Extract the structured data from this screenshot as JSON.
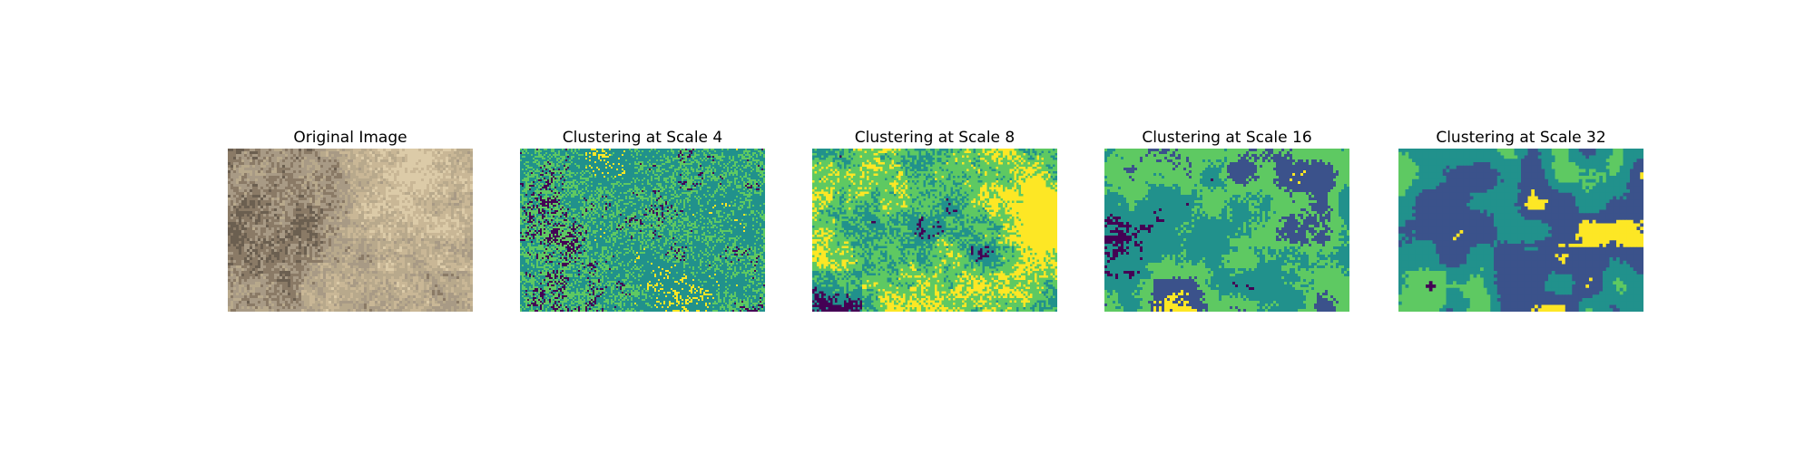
{
  "figure": {
    "panels": [
      {
        "title": "Original Image",
        "kind": "photo"
      },
      {
        "title": "Clustering at Scale 4",
        "kind": "cluster",
        "scale": 4
      },
      {
        "title": "Clustering at Scale 8",
        "kind": "cluster",
        "scale": 8
      },
      {
        "title": "Clustering at Scale 16",
        "kind": "cluster",
        "scale": 16
      },
      {
        "title": "Clustering at Scale 32",
        "kind": "cluster",
        "scale": 32
      }
    ],
    "cluster_colors": [
      "#440154",
      "#3b528b",
      "#21918c",
      "#5ec962",
      "#fde725"
    ],
    "photo_colors": [
      "#a89a85",
      "#c9b796",
      "#8a7a66",
      "#dccba8",
      "#6b5f50",
      "#b8a98c"
    ]
  }
}
